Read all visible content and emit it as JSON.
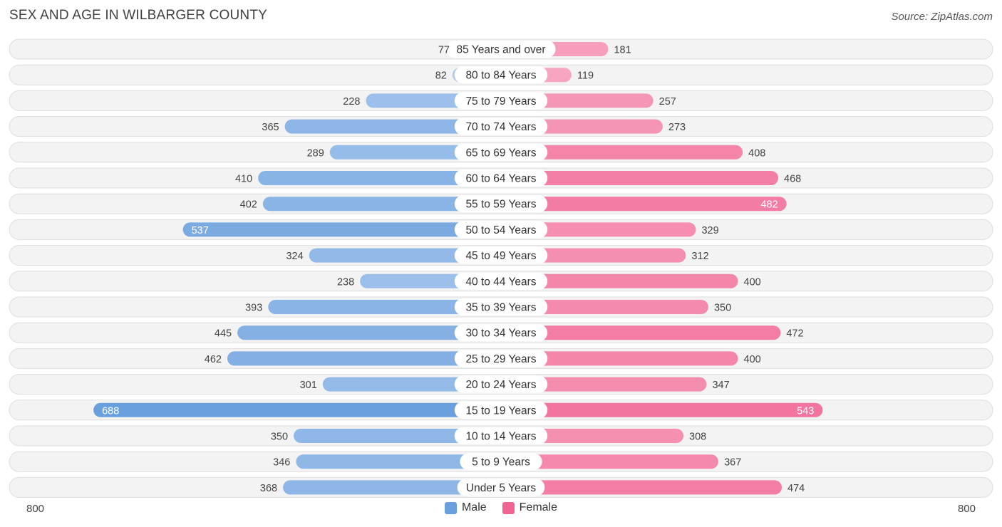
{
  "title": "SEX AND AGE IN WILBARGER COUNTY",
  "source": "Source: ZipAtlas.com",
  "colors": {
    "male": "#6a9fdd",
    "male_light": "#adcbef",
    "female": "#f06593",
    "female_light": "#f8aac4"
  },
  "legend": {
    "male": "Male",
    "female": "Female"
  },
  "axis": {
    "left_label": "800",
    "right_label": "800"
  },
  "chart_data": {
    "type": "bar",
    "orientation": "horizontal-diverging",
    "title": "SEX AND AGE IN WILBARGER COUNTY",
    "xlim": [
      -800,
      800
    ],
    "categories": [
      "85 Years and over",
      "80 to 84 Years",
      "75 to 79 Years",
      "70 to 74 Years",
      "65 to 69 Years",
      "60 to 64 Years",
      "55 to 59 Years",
      "50 to 54 Years",
      "45 to 49 Years",
      "40 to 44 Years",
      "35 to 39 Years",
      "30 to 34 Years",
      "25 to 29 Years",
      "20 to 24 Years",
      "15 to 19 Years",
      "10 to 14 Years",
      "5 to 9 Years",
      "Under 5 Years"
    ],
    "series": [
      {
        "name": "Male",
        "values": [
          77,
          82,
          228,
          365,
          289,
          410,
          402,
          537,
          324,
          238,
          393,
          445,
          462,
          301,
          688,
          350,
          346,
          368
        ]
      },
      {
        "name": "Female",
        "values": [
          181,
          119,
          257,
          273,
          408,
          468,
          482,
          329,
          312,
          400,
          350,
          472,
          400,
          347,
          543,
          308,
          367,
          474
        ]
      }
    ],
    "legend_position": "bottom-center"
  }
}
